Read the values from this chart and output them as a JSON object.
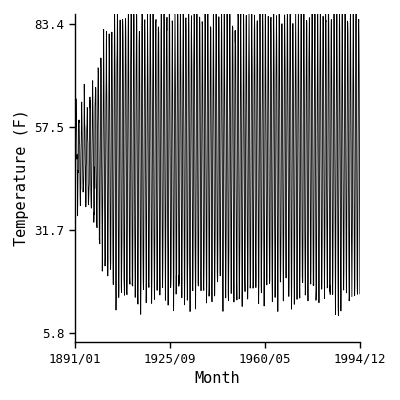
{
  "title": "",
  "xlabel": "Month",
  "ylabel": "Temperature (F)",
  "x_tick_labels": [
    "1891/01",
    "1925/09",
    "1960/05",
    "1994/12"
  ],
  "y_tick_values": [
    5.8,
    31.7,
    57.5,
    83.4
  ],
  "start_year": 1891,
  "start_month": 1,
  "end_year": 1994,
  "end_month": 12,
  "line_color": "#000000",
  "line_width": 0.6,
  "background_color": "#ffffff",
  "mean_temp": 50.6,
  "amplitude": 36.0,
  "noise_std": 2.5,
  "ylim": [
    3.5,
    86.0
  ],
  "xlim_start": 1891.0,
  "xlim_end": 1995.0,
  "figsize": [
    4.0,
    4.0
  ],
  "dpi": 100,
  "x_tick_positions": [
    1891.0,
    1925.75,
    1960.333,
    1994.917
  ]
}
